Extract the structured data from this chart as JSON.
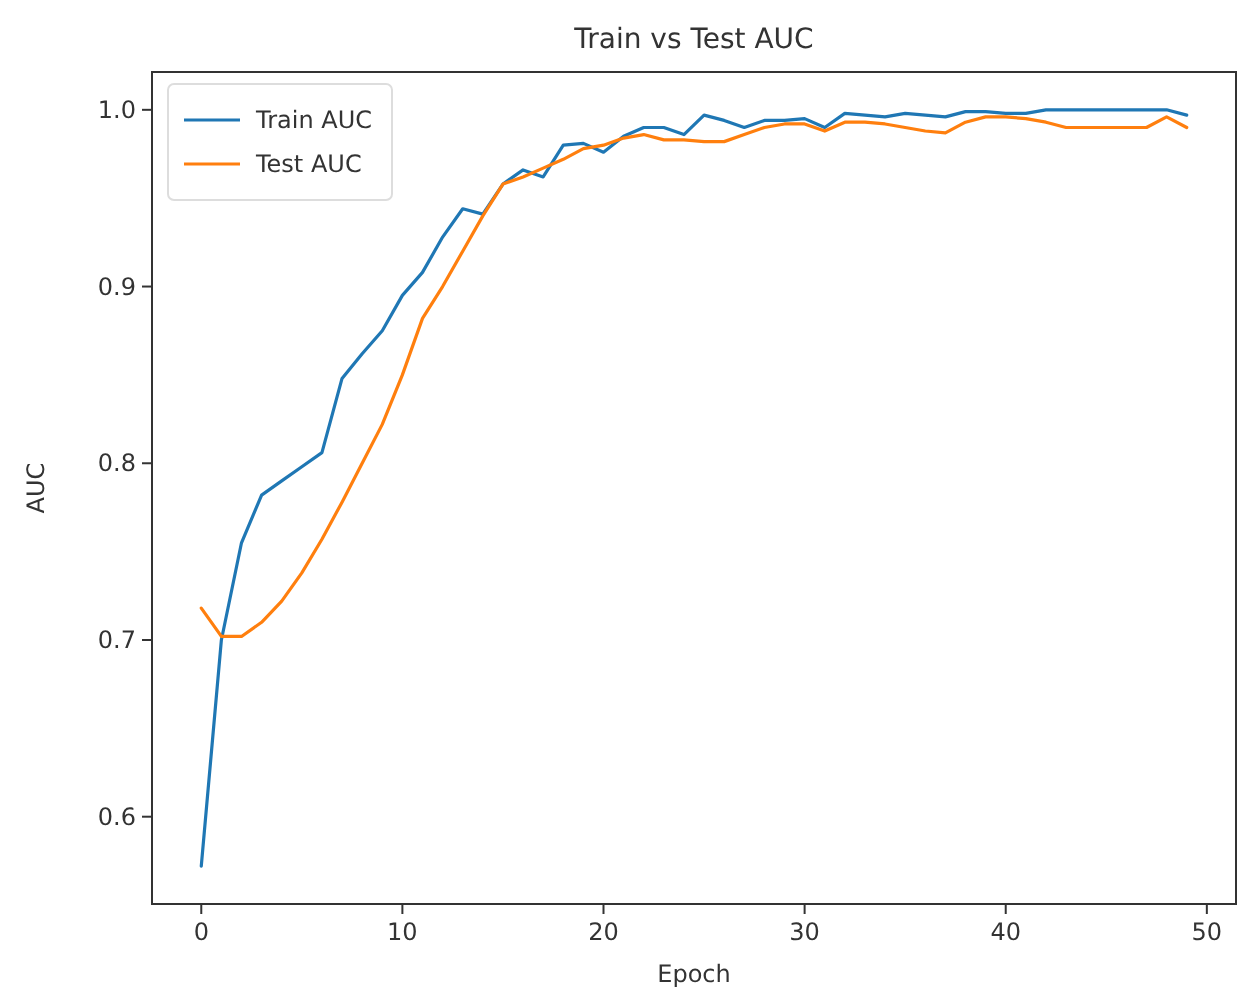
{
  "chart_data": {
    "type": "line",
    "title": "Train vs Test AUC",
    "xlabel": "Epoch",
    "ylabel": "AUC",
    "x": [
      0,
      1,
      2,
      3,
      4,
      5,
      6,
      7,
      8,
      9,
      10,
      11,
      12,
      13,
      14,
      15,
      16,
      17,
      18,
      19,
      20,
      21,
      22,
      23,
      24,
      25,
      26,
      27,
      28,
      29,
      30,
      31,
      32,
      33,
      34,
      35,
      36,
      37,
      38,
      39,
      40,
      41,
      42,
      43,
      44,
      45,
      46,
      47,
      48,
      49
    ],
    "series": [
      {
        "name": "Train AUC",
        "color": "#1f77b4",
        "values": [
          0.572,
          0.7,
          0.755,
          0.782,
          0.79,
          0.798,
          0.806,
          0.848,
          0.862,
          0.875,
          0.895,
          0.908,
          0.928,
          0.944,
          0.941,
          0.958,
          0.966,
          0.962,
          0.98,
          0.981,
          0.976,
          0.985,
          0.99,
          0.99,
          0.986,
          0.997,
          0.994,
          0.99,
          0.994,
          0.994,
          0.995,
          0.99,
          0.998,
          0.997,
          0.996,
          0.998,
          0.997,
          0.996,
          0.999,
          0.999,
          0.998,
          0.998,
          1.0,
          1.0,
          1.0,
          1.0,
          1.0,
          1.0,
          1.0,
          0.997
        ]
      },
      {
        "name": "Test AUC",
        "color": "#ff7f0e",
        "values": [
          0.718,
          0.702,
          0.702,
          0.71,
          0.722,
          0.738,
          0.757,
          0.778,
          0.8,
          0.822,
          0.85,
          0.882,
          0.9,
          0.92,
          0.94,
          0.958,
          0.962,
          0.967,
          0.972,
          0.978,
          0.98,
          0.984,
          0.986,
          0.983,
          0.983,
          0.982,
          0.982,
          0.986,
          0.99,
          0.992,
          0.992,
          0.988,
          0.993,
          0.993,
          0.992,
          0.99,
          0.988,
          0.987,
          0.993,
          0.996,
          0.996,
          0.995,
          0.993,
          0.99,
          0.99,
          0.99,
          0.99,
          0.99,
          0.996,
          0.99
        ]
      }
    ],
    "xlim": [
      -2.45,
      51.45
    ],
    "ylim": [
      0.5506,
      1.0214
    ],
    "xticks": [
      0,
      10,
      20,
      30,
      40,
      50
    ],
    "yticks": [
      {
        "value": 0.6,
        "label": "0.6"
      },
      {
        "value": 0.7,
        "label": "0.7"
      },
      {
        "value": 0.8,
        "label": "0.8"
      },
      {
        "value": 0.9,
        "label": "0.9"
      },
      {
        "value": 1.0,
        "label": "1.0"
      }
    ],
    "legend": "top left",
    "grid": false
  }
}
